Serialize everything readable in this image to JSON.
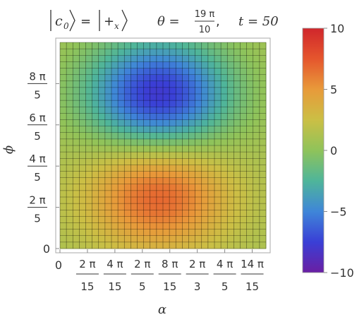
{
  "chart_data": {
    "type": "heatmap",
    "title": {
      "ket_left": "c",
      "ket_left_sub": "0",
      "equals": "=",
      "ket_right": "+",
      "ket_right_sub": "x",
      "theta_label": "θ =",
      "theta_num": "19 π",
      "theta_den": "10",
      "comma": ",",
      "t_label": "t = 50"
    },
    "xlabel": "α",
    "ylabel": "ϕ",
    "xlim": [
      0,
      3.1416
    ],
    "ylim": [
      0,
      6.2832
    ],
    "x_ticks": [
      {
        "value": 0,
        "label": "0",
        "num": "",
        "den": ""
      },
      {
        "value": 0.4189,
        "label": "",
        "num": "2 π",
        "den": "15"
      },
      {
        "value": 0.8378,
        "label": "",
        "num": "4 π",
        "den": "15"
      },
      {
        "value": 1.2566,
        "label": "",
        "num": "2 π",
        "den": "5"
      },
      {
        "value": 1.6755,
        "label": "",
        "num": "8 π",
        "den": "15"
      },
      {
        "value": 2.0944,
        "label": "",
        "num": "2 π",
        "den": "3"
      },
      {
        "value": 2.5133,
        "label": "",
        "num": "4 π",
        "den": "5"
      },
      {
        "value": 2.9322,
        "label": "",
        "num": "14 π",
        "den": "15"
      }
    ],
    "y_ticks": [
      {
        "value": 0,
        "label": "0",
        "num": "",
        "den": ""
      },
      {
        "value": 1.2566,
        "label": "",
        "num": "2 π",
        "den": "5"
      },
      {
        "value": 2.5133,
        "label": "",
        "num": "4 π",
        "den": "5"
      },
      {
        "value": 3.7699,
        "label": "",
        "num": "6 π",
        "den": "5"
      },
      {
        "value": 5.0265,
        "label": "",
        "num": "8 π",
        "den": "5"
      }
    ],
    "grid": true,
    "field": {
      "resolution": [
        32,
        32
      ],
      "max": {
        "alpha": 1.5,
        "phi": 1.6,
        "value": 7.0
      },
      "min": {
        "alpha": 1.5,
        "phi": 4.7,
        "value": -8.0
      },
      "edge_value": 1.0
    },
    "colorbar": {
      "range": [
        -10,
        10
      ],
      "ticks": [
        {
          "value": 10,
          "label": "10"
        },
        {
          "value": 5,
          "label": "5"
        },
        {
          "value": 0,
          "label": "0"
        },
        {
          "value": -5,
          "label": "−5"
        },
        {
          "value": -10,
          "label": "−10"
        }
      ],
      "colormap": [
        "#6a1fa3",
        "#3a3fd6",
        "#3f86d8",
        "#4fb59a",
        "#8fc35a",
        "#cbbf45",
        "#e89a3a",
        "#e5562d",
        "#d0262c"
      ]
    }
  }
}
